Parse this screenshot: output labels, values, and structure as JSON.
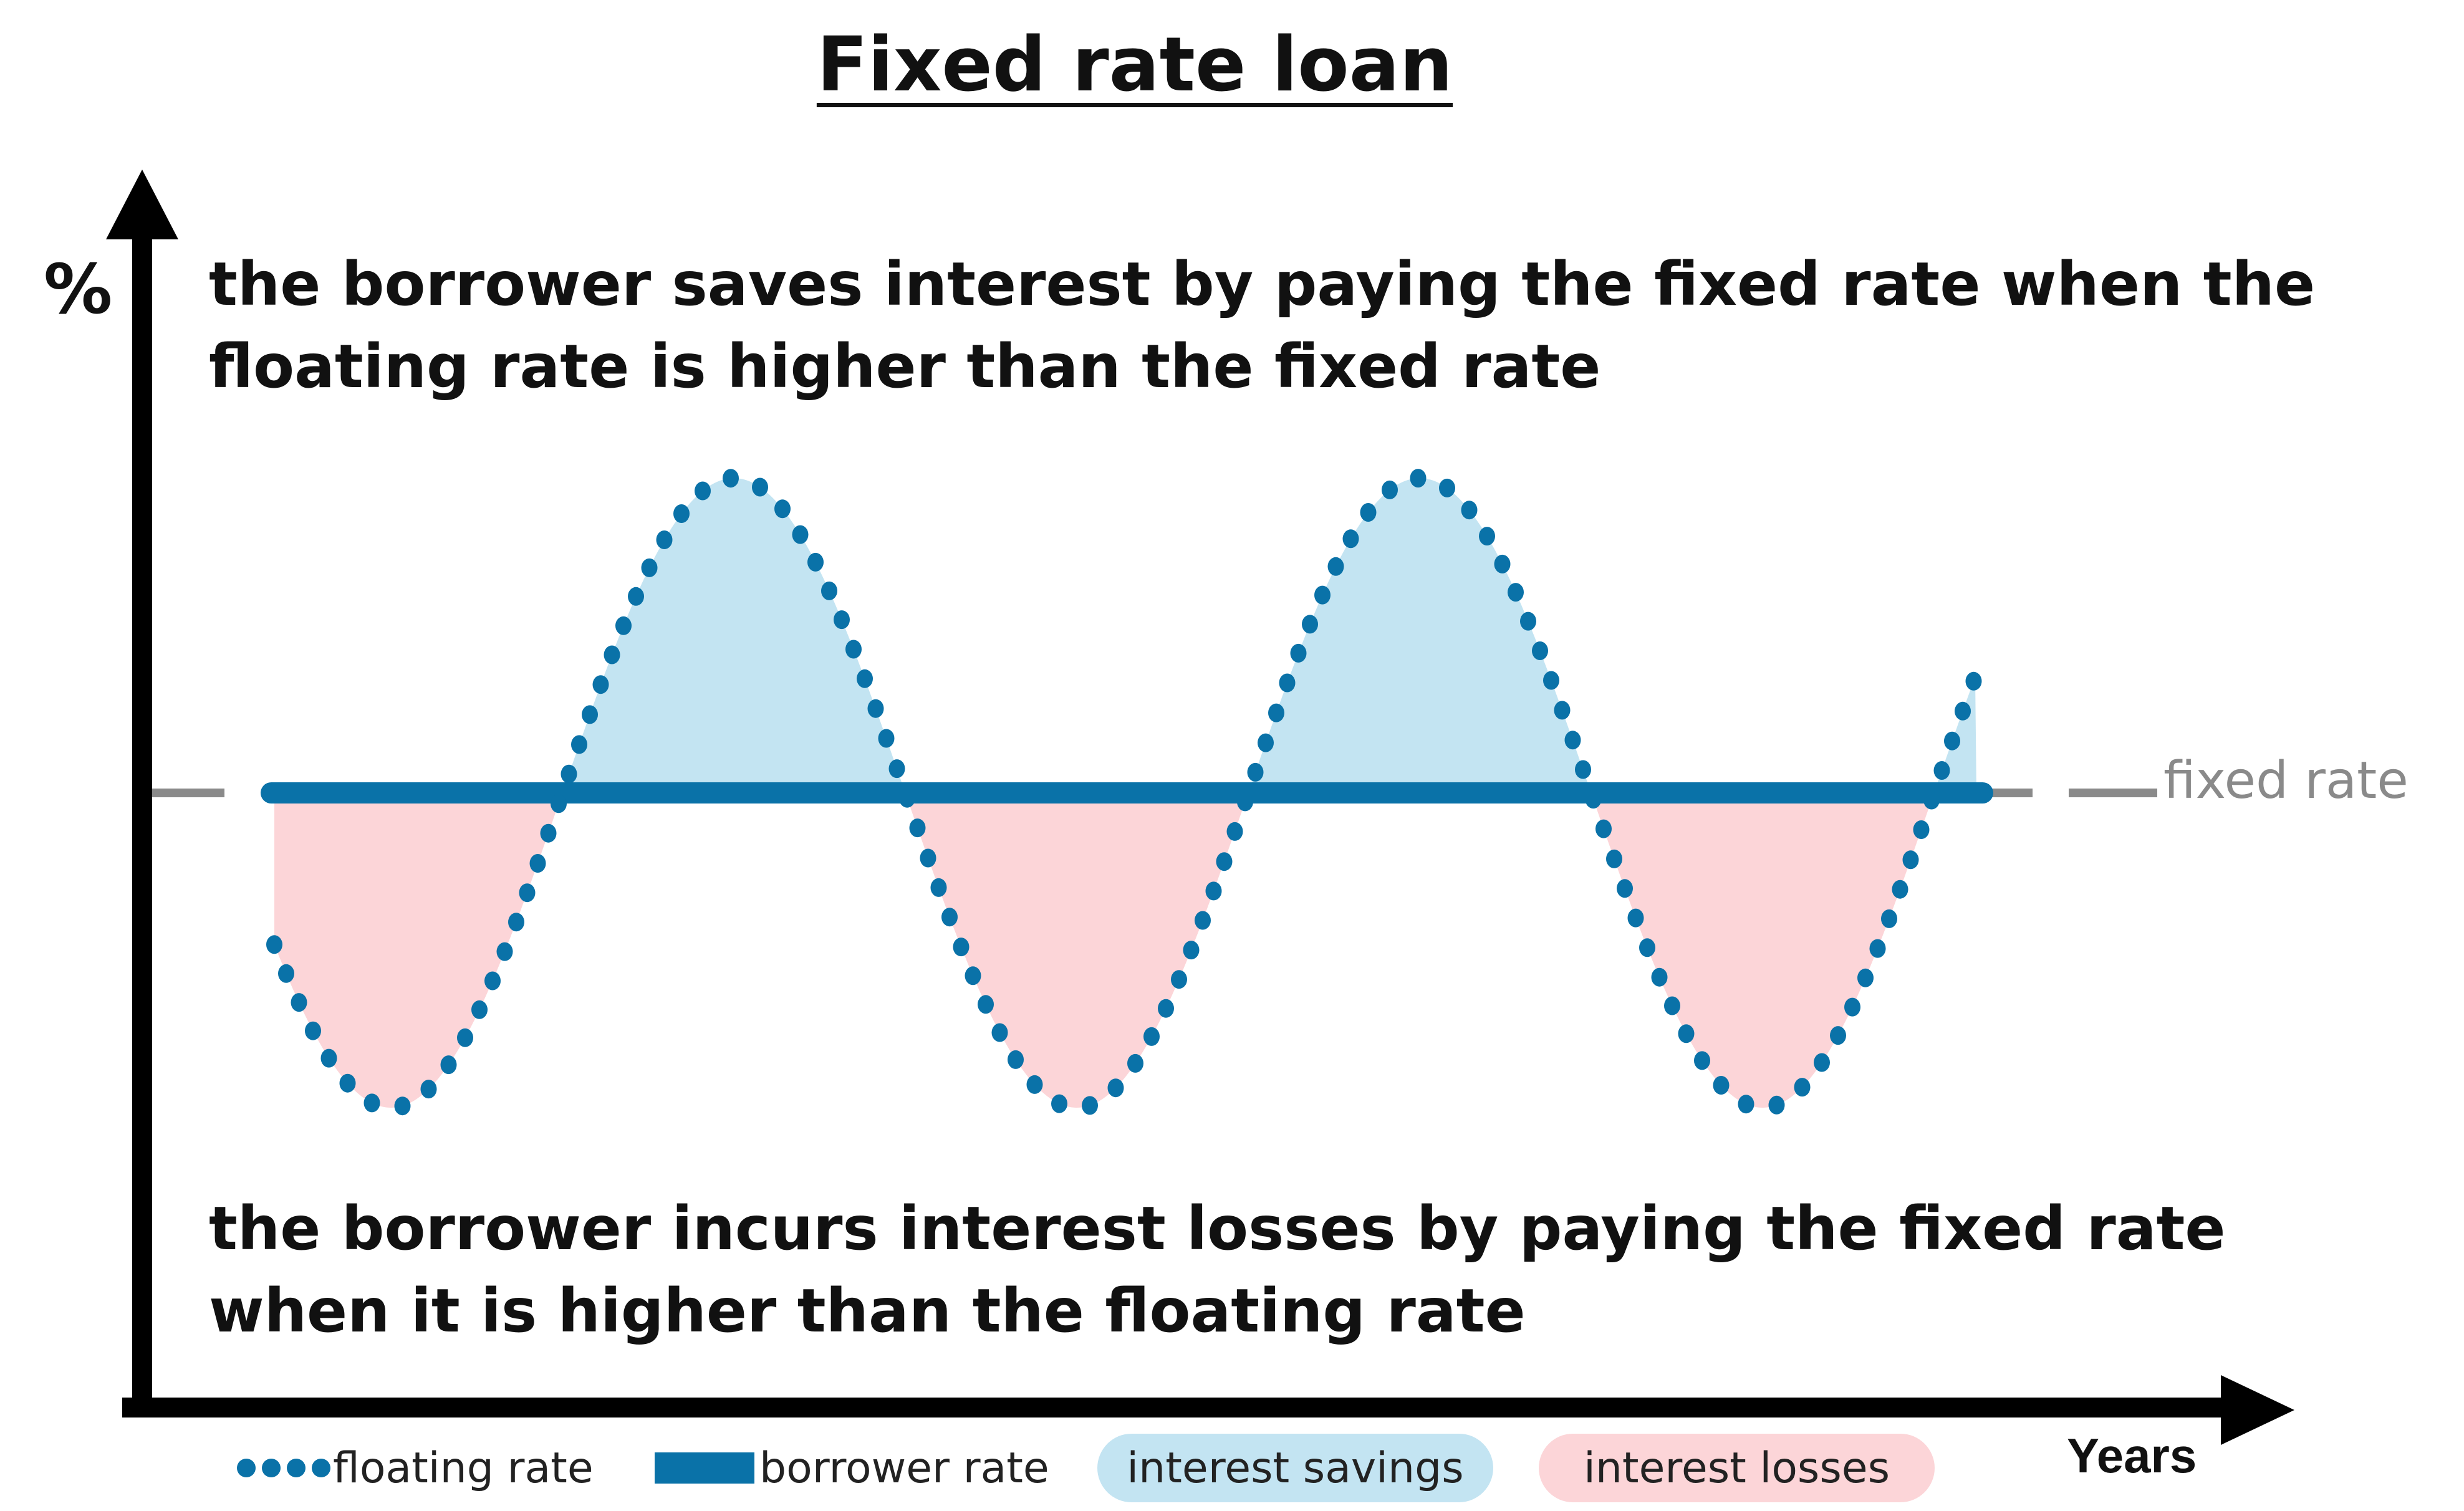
{
  "title": "Fixed rate loan",
  "axes": {
    "y_label": "%",
    "x_label": "Years"
  },
  "notes": {
    "top_line1": "the borrower saves interest by paying the fixed rate when the",
    "top_line2": "floating rate is higher than the fixed rate",
    "bottom_line1": "the borrower incurs interest losses by paying the fixed rate",
    "bottom_line2": "when it is higher than the floating rate"
  },
  "fixed_rate_label": "fixed rate",
  "legend": {
    "floating": "floating rate",
    "borrower": "borrower rate",
    "savings": "interest savings",
    "losses": "interest losses"
  },
  "colors": {
    "floating": "#0a72a8",
    "borrower": "#0a72a8",
    "savings_fill": "#c3e4f2",
    "losses_fill": "#fcd5d8",
    "fixed_line": "#8a8a8a",
    "axis": "#000000"
  },
  "icons": {
    "y_axis_arrow": "arrow-up-icon",
    "x_axis_arrow": "arrow-right-icon"
  }
}
